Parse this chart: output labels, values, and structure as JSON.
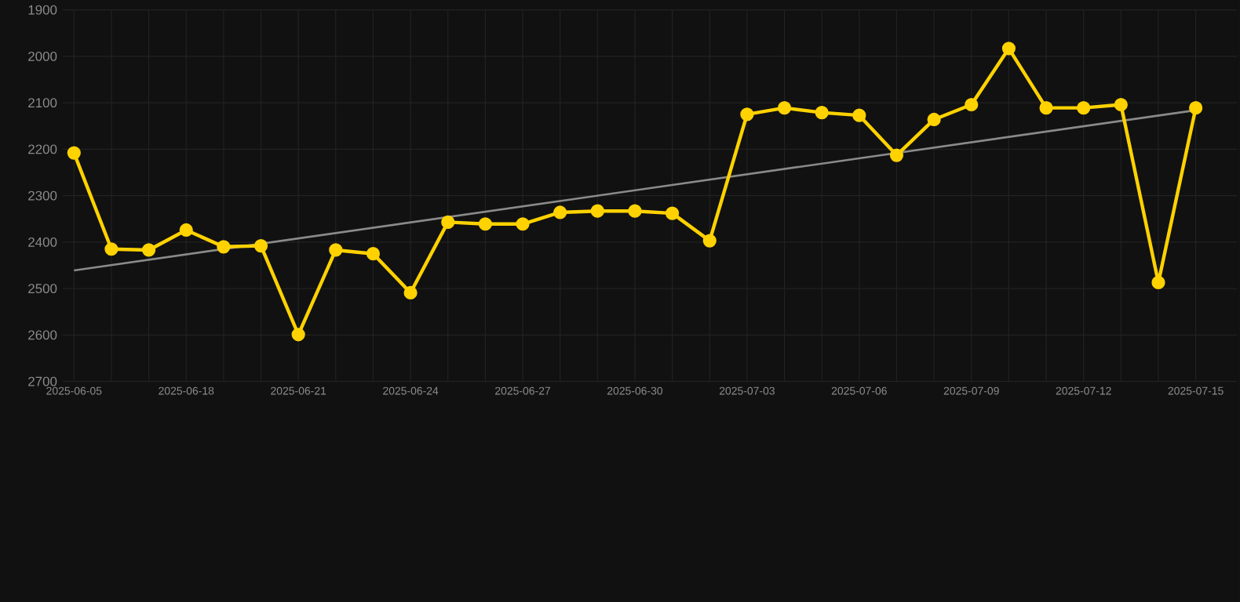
{
  "chart_data": {
    "type": "line",
    "categories": [
      "2025-06-05",
      null,
      null,
      "2025-06-18",
      null,
      null,
      "2025-06-21",
      null,
      null,
      "2025-06-24",
      null,
      null,
      "2025-06-27",
      null,
      null,
      "2025-06-30",
      null,
      null,
      "2025-07-03",
      null,
      null,
      "2025-07-06",
      null,
      null,
      "2025-07-09",
      null,
      null,
      "2025-07-12",
      null,
      null,
      "2025-07-15"
    ],
    "series": [
      {
        "color": "#ffd200",
        "marker": "circle",
        "values": [
          2208,
          2415,
          2417,
          2374,
          2410,
          2408,
          2599,
          2417,
          2425,
          2509,
          2357,
          2361,
          2361,
          2336,
          2333,
          2333,
          2338,
          2397,
          2125,
          2111,
          2121,
          2127,
          2213,
          2136,
          2104,
          1983,
          2111,
          2111,
          2104,
          2487,
          2111
        ]
      },
      {
        "type": "line",
        "color": "#8a8a8a",
        "marker": "none",
        "values": [
          2461,
          null,
          null,
          null,
          null,
          null,
          null,
          null,
          null,
          null,
          null,
          null,
          null,
          null,
          null,
          null,
          null,
          null,
          null,
          null,
          null,
          null,
          null,
          null,
          null,
          null,
          null,
          null,
          null,
          null,
          2116
        ]
      }
    ],
    "ylim": [
      2700,
      1900
    ],
    "yticks": [
      1900,
      2000,
      2100,
      2200,
      2300,
      2400,
      2500,
      2600,
      2700
    ],
    "grid": true,
    "line_style": "solid"
  }
}
